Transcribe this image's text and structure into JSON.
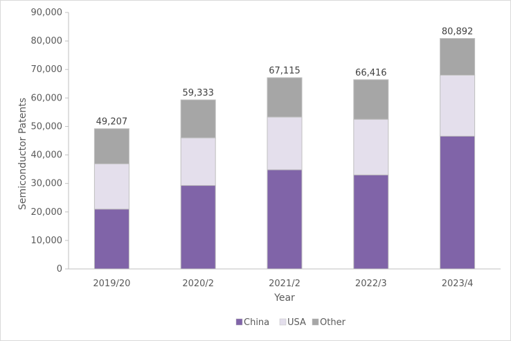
{
  "chart_data": {
    "type": "bar",
    "stacked": true,
    "categories": [
      "2019/20",
      "2020/2",
      "2021/2",
      "2022/3",
      "2023/4"
    ],
    "series": [
      {
        "name": "China",
        "values": [
          21000,
          29300,
          34800,
          33000,
          46600
        ],
        "color": "#8064a8"
      },
      {
        "name": "USA",
        "values": [
          15900,
          16700,
          18500,
          19500,
          21400
        ],
        "color": "#e4dfec"
      },
      {
        "name": "Other",
        "values": [
          12307,
          13333,
          13815,
          13916,
          12892
        ],
        "color": "#a6a6a6"
      }
    ],
    "totals": [
      "49,207",
      "59,333",
      "67,115",
      "66,416",
      "80,892"
    ],
    "y_tick_labels": [
      "0",
      "10,000",
      "20,000",
      "30,000",
      "40,000",
      "50,000",
      "60,000",
      "70,000",
      "80,000",
      "90,000"
    ],
    "xlabel": "Year",
    "ylabel": "Semiconductor Patents",
    "ylim": [
      0,
      90000
    ],
    "grid": false,
    "legend_position": "bottom"
  }
}
